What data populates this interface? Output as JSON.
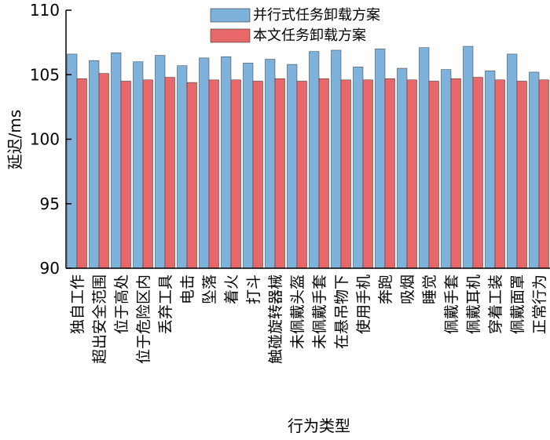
{
  "chart_data": {
    "type": "bar",
    "xlabel": "行为类型",
    "ylabel": "延迟/ms",
    "ylim": [
      90,
      110
    ],
    "yticks": [
      "90",
      "95",
      "100",
      "105",
      "110"
    ],
    "grid": false,
    "legend_position": "top-center",
    "categories": [
      "独自工作",
      "超出安全范围",
      "位于高处",
      "位于危险区内",
      "丢弃工具",
      "电击",
      "坠落",
      "着火",
      "打斗",
      "触碰旋转器械",
      "未佩戴头盔",
      "未佩戴手套",
      "在悬吊物下",
      "使用手机",
      "奔跑",
      "吸烟",
      "睡觉",
      "佩戴手套",
      "佩戴耳机",
      "穿着工装",
      "佩戴面罩",
      "正常行为"
    ],
    "series": [
      {
        "name": "并行式任务卸载方案",
        "color": "#7fb2da",
        "values": [
          106.6,
          106.1,
          106.7,
          106.0,
          106.5,
          105.7,
          106.3,
          106.4,
          105.9,
          106.2,
          105.8,
          106.8,
          106.9,
          105.6,
          107.0,
          105.5,
          107.1,
          105.4,
          107.2,
          105.3,
          106.6,
          105.2
        ]
      },
      {
        "name": "本文任务卸载方案",
        "color": "#e8686a",
        "values": [
          104.7,
          105.1,
          104.5,
          104.6,
          104.8,
          104.4,
          104.6,
          104.6,
          104.5,
          104.7,
          104.5,
          104.7,
          104.6,
          104.6,
          104.7,
          104.6,
          104.5,
          104.7,
          104.8,
          104.6,
          104.5,
          104.6
        ]
      }
    ]
  }
}
